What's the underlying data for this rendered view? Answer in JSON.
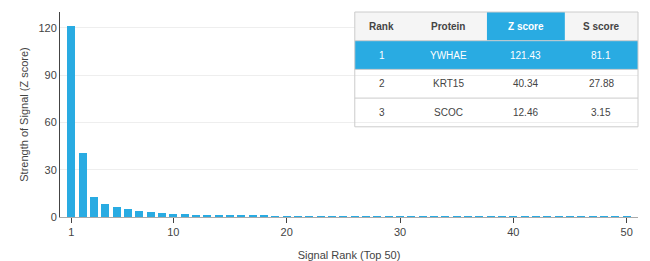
{
  "chart_data": {
    "type": "bar",
    "xlabel": "Signal Rank (Top 50)",
    "ylabel": "Strength of Signal (Z score)",
    "x": [
      1,
      2,
      3,
      4,
      5,
      6,
      7,
      8,
      9,
      10,
      11,
      12,
      13,
      14,
      15,
      16,
      17,
      18,
      19,
      20,
      21,
      22,
      23,
      24,
      25,
      26,
      27,
      28,
      29,
      30,
      31,
      32,
      33,
      34,
      35,
      36,
      37,
      38,
      39,
      40,
      41,
      42,
      43,
      44,
      45,
      46,
      47,
      48,
      49,
      50
    ],
    "values": [
      121.43,
      40.34,
      12.46,
      8.2,
      6.5,
      5.1,
      3.8,
      3.0,
      2.4,
      1.9,
      1.6,
      1.4,
      1.2,
      1.05,
      0.92,
      0.82,
      0.74,
      0.68,
      0.62,
      0.57,
      0.52,
      0.48,
      0.45,
      0.42,
      0.39,
      0.37,
      0.35,
      0.33,
      0.31,
      0.29,
      0.28,
      0.27,
      0.26,
      0.25,
      0.24,
      0.23,
      0.22,
      0.21,
      0.2,
      0.19,
      0.18,
      0.17,
      0.17,
      0.16,
      0.15,
      0.15,
      0.14,
      0.14,
      0.13,
      0.13
    ],
    "color": "#29ABE2",
    "xlim": [
      0,
      51
    ],
    "ylim": [
      0,
      130
    ],
    "xticks": [
      1,
      10,
      20,
      30,
      40,
      50
    ],
    "yticks": [
      0,
      30,
      60,
      90,
      120
    ],
    "grid": true,
    "table": {
      "headers": [
        "Rank",
        "Protein",
        "Z score",
        "S score"
      ],
      "rows": [
        [
          "1",
          "YWHAE",
          "121.43",
          "81.1"
        ],
        [
          "2",
          "KRT15",
          "40.34",
          "27.88"
        ],
        [
          "3",
          "SCOC",
          "12.46",
          "3.15"
        ]
      ]
    }
  }
}
